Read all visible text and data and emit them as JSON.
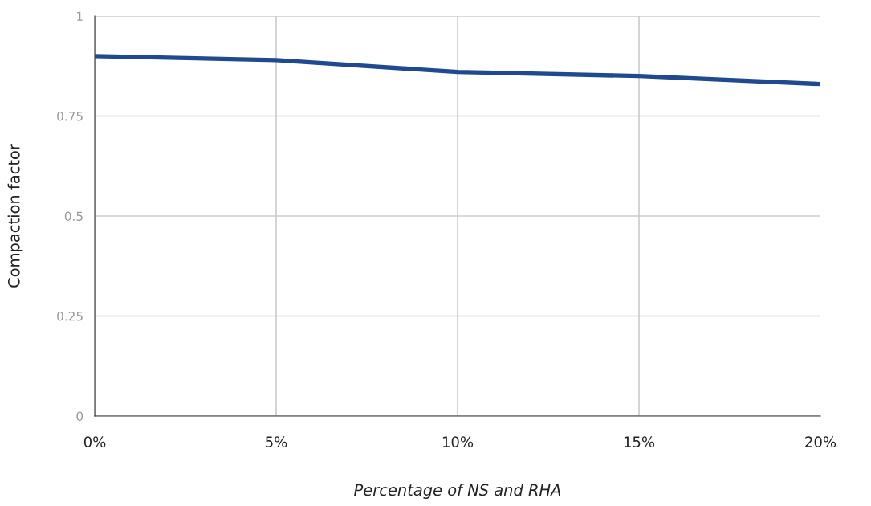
{
  "chart_data": {
    "type": "line",
    "xlabel": "Percentage of NS and RHA",
    "ylabel": "Compaction factor",
    "x": [
      0,
      5,
      10,
      15,
      20
    ],
    "series": [
      {
        "color": "#1f4a8f",
        "values": [
          0.9,
          0.89,
          0.86,
          0.85,
          0.83
        ]
      }
    ],
    "xlim": [
      0,
      20
    ],
    "xticks": [
      {
        "value": 0,
        "label": "0%"
      },
      {
        "value": 5,
        "label": "5%"
      },
      {
        "value": 10,
        "label": "10%"
      },
      {
        "value": 15,
        "label": "15%"
      },
      {
        "value": 20,
        "label": "20%"
      }
    ],
    "ylim": [
      0,
      1
    ],
    "yticks": [
      0,
      0.25,
      0.5,
      0.75,
      1
    ],
    "grid": true
  }
}
